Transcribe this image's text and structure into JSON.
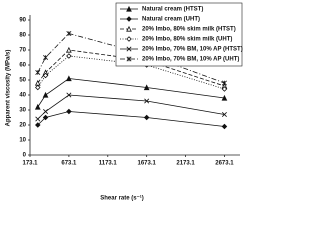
{
  "chart_data": {
    "type": "line",
    "x_label": "Shear rate (s⁻¹)",
    "y_label": "Apparent viscosity (MPa/s)",
    "x": [
      273.1,
      373.1,
      673.1,
      1673.1,
      2673.1
    ],
    "xlim": [
      173.1,
      2873.1
    ],
    "xticks": [
      173.1,
      673.1,
      1173.1,
      1673.1,
      2173.1,
      2673.1
    ],
    "ylim": [
      0,
      90
    ],
    "yticks": [
      0,
      10,
      20,
      30,
      40,
      50,
      60,
      70,
      80,
      90
    ],
    "legend": "top-right",
    "series": [
      {
        "name": "Natural cream (HTST)",
        "color": "#111111",
        "line_style": "solid",
        "marker": "triangle",
        "values": [
          32,
          40,
          51,
          45,
          38
        ]
      },
      {
        "name": "Natural cream (UHT)",
        "color": "#111111",
        "line_style": "solid",
        "marker": "diamond",
        "values": [
          20,
          25,
          29,
          25,
          19
        ]
      },
      {
        "name": "20% Imbo, 80% skim milk (HTST)",
        "color": "#111111",
        "line_style": "dashed",
        "marker": "triangle-open",
        "values": [
          48,
          55,
          70,
          63,
          46
        ]
      },
      {
        "name": "20% Imbo, 80% skim milk (UHT)",
        "color": "#111111",
        "line_style": "dotted",
        "marker": "diamond-open",
        "values": [
          45,
          53,
          66,
          60,
          44
        ]
      },
      {
        "name": "20% Imbo, 70% BM, 10% AP (HTST)",
        "color": "#111111",
        "line_style": "solid",
        "marker": "x",
        "values": [
          24,
          29,
          40,
          36,
          27
        ]
      },
      {
        "name": "20% Imbo, 70% BM, 10% AP (UHT)",
        "color": "#111111",
        "line_style": "dashdot",
        "marker": "star",
        "values": [
          55,
          65,
          81,
          67,
          48
        ]
      }
    ]
  }
}
